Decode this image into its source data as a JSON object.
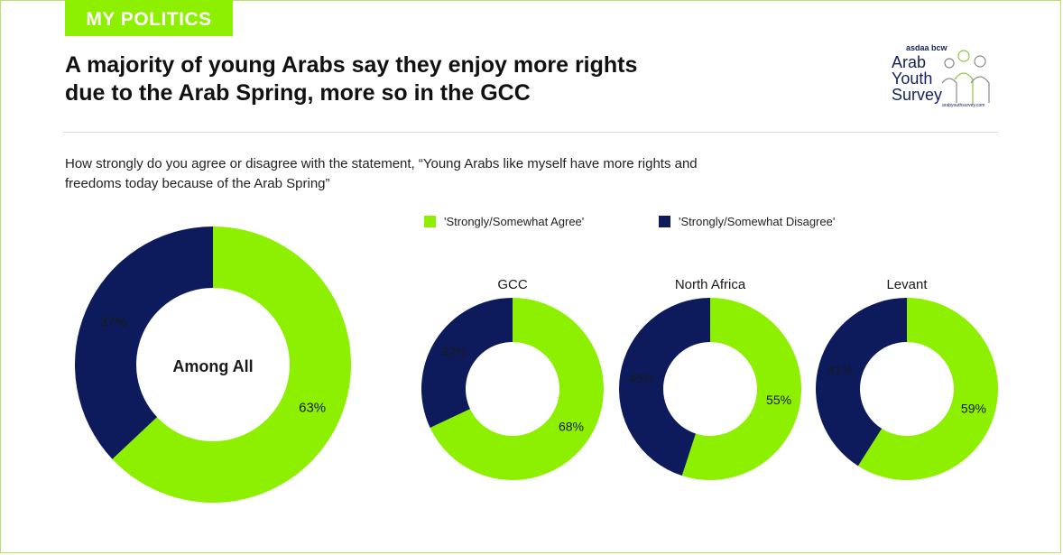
{
  "header": {
    "section_tag": "MY POLITICS",
    "title_line1": "A majority of young Arabs say they enjoy more rights",
    "title_line2": "due to the Arab Spring, more so in the GCC",
    "question_line1": "How strongly do you agree or disagree with the statement, “Young Arabs like myself have more rights and",
    "question_line2": "freedoms today because of the Arab Spring”"
  },
  "logo": {
    "brand": "asdaa bcw",
    "line1": "Arab",
    "line2": "Youth",
    "line3": "Survey",
    "site": "arabyouthsurvey.com"
  },
  "colors": {
    "agree": "#8cf000",
    "disagree": "#0d1a5c",
    "tag_bg": "#8cf000"
  },
  "chart_data": [
    {
      "type": "pie",
      "title": "",
      "center_label": "Among All",
      "labels": [
        "'Strongly/Somewhat Agree'",
        "'Strongly/Somewhat Disagree'"
      ],
      "values": [
        63,
        37
      ],
      "data_labels": [
        "63%",
        "37%"
      ]
    },
    {
      "type": "pie",
      "title": "GCC",
      "labels": [
        "'Strongly/Somewhat Agree'",
        "'Strongly/Somewhat Disagree'"
      ],
      "values": [
        68,
        32
      ],
      "data_labels": [
        "68%",
        "32%"
      ]
    },
    {
      "type": "pie",
      "title": "North Africa",
      "labels": [
        "'Strongly/Somewhat Agree'",
        "'Strongly/Somewhat Disagree'"
      ],
      "values": [
        55,
        45
      ],
      "data_labels": [
        "55%",
        "45%"
      ]
    },
    {
      "type": "pie",
      "title": "Levant",
      "labels": [
        "'Strongly/Somewhat Agree'",
        "'Strongly/Somewhat Disagree'"
      ],
      "values": [
        59,
        41
      ],
      "data_labels": [
        "59%",
        "41%"
      ]
    }
  ],
  "legend": {
    "placement": "top",
    "agree_label": "'Strongly/Somewhat Agree'",
    "disagree_label": "'Strongly/Somewhat Disagree'"
  }
}
